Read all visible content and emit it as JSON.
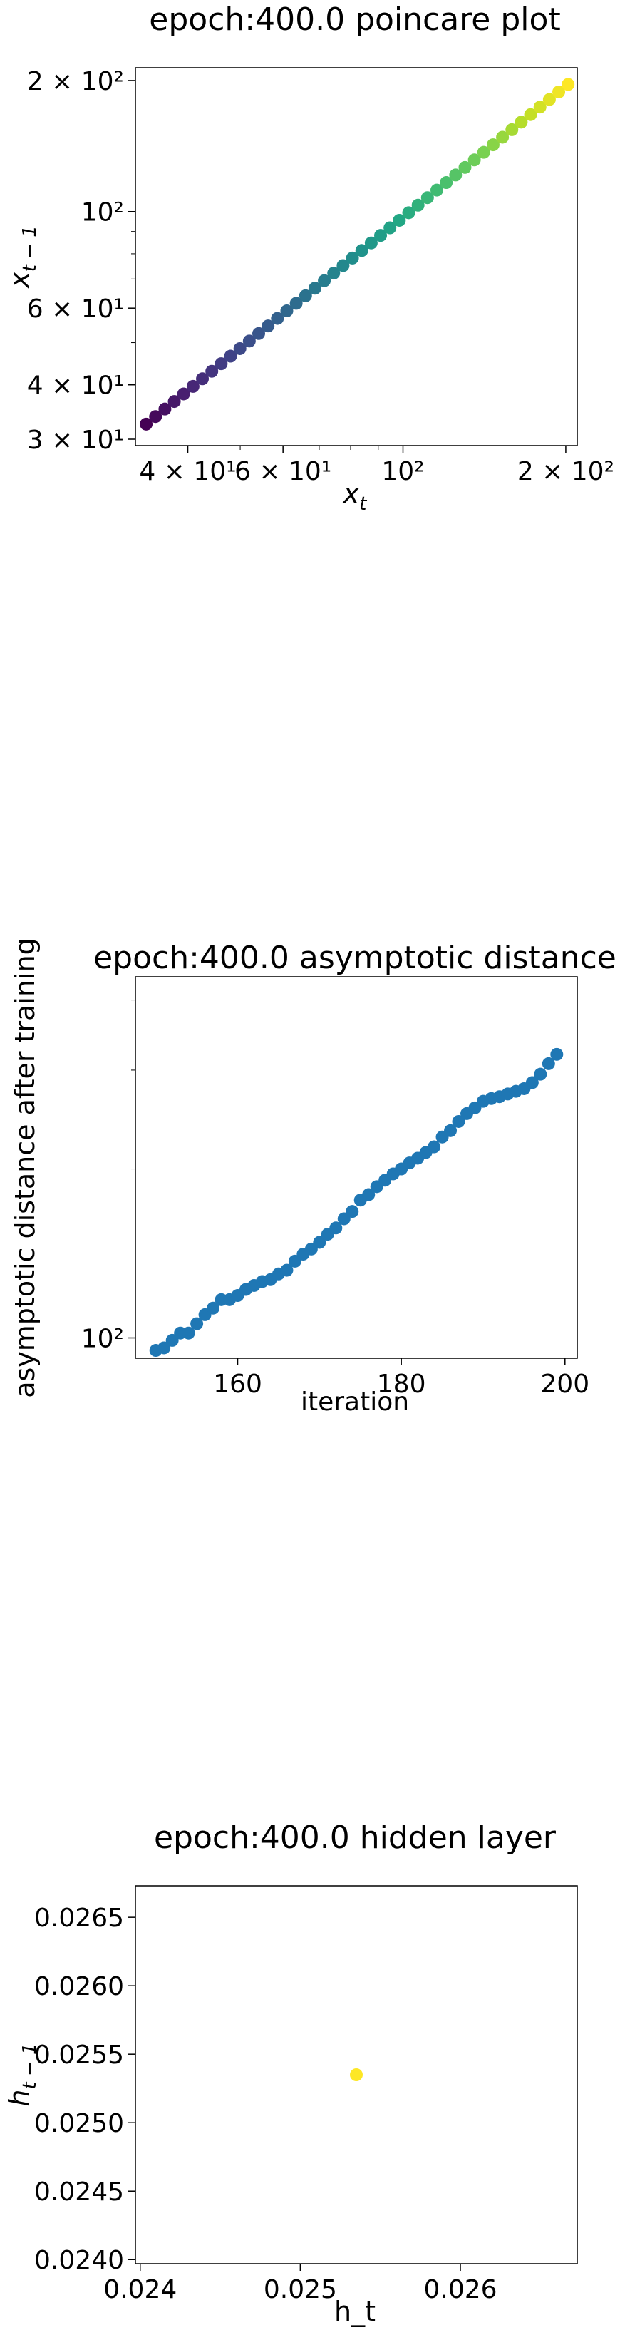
{
  "chart_data": [
    {
      "type": "scatter",
      "title": "epoch:400.0 poincare plot",
      "xlabel_main": "x",
      "xlabel_sub": "t",
      "ylabel_main": "x",
      "ylabel_sub": "t − 1",
      "xscale": "log",
      "yscale": "log",
      "xlim": [
        32,
        210
      ],
      "ylim": [
        29,
        214
      ],
      "x_ticks": [
        {
          "v": 40,
          "label": "4 × 10¹"
        },
        {
          "v": 60,
          "label": "6 × 10¹"
        },
        {
          "v": 100,
          "label": "10²"
        },
        {
          "v": 200,
          "label": "2 × 10²"
        }
      ],
      "y_ticks": [
        {
          "v": 30,
          "label": "3 × 10¹"
        },
        {
          "v": 40,
          "label": "4 × 10¹"
        },
        {
          "v": 60,
          "label": "6 × 10¹"
        },
        {
          "v": 100,
          "label": "10²"
        },
        {
          "v": 200,
          "label": "2 × 10²"
        }
      ],
      "colormap": "viridis",
      "points": 46,
      "x_start": 33.5,
      "x_end": 202,
      "grid": false
    },
    {
      "type": "scatter",
      "title": "epoch:400.0 asymptotic distance",
      "xlabel": "iteration",
      "ylabel": "asymptotic distance after training",
      "yscale": "log",
      "xlim": [
        147.5,
        201.5
      ],
      "ylim": [
        92,
        440
      ],
      "x_ticks": [
        {
          "v": 160,
          "label": "160"
        },
        {
          "v": 180,
          "label": "180"
        },
        {
          "v": 200,
          "label": "200"
        }
      ],
      "y_ticks": [
        {
          "v": 100,
          "label": "10²"
        }
      ],
      "color": "#1f77b4",
      "x": [
        150,
        151,
        152,
        153,
        154,
        155,
        156,
        157,
        158,
        159,
        160,
        161,
        162,
        163,
        164,
        165,
        166,
        167,
        168,
        169,
        170,
        171,
        172,
        173,
        174,
        175,
        176,
        177,
        178,
        179,
        180,
        181,
        182,
        183,
        184,
        185,
        186,
        187,
        188,
        189,
        190,
        191,
        192,
        193,
        194,
        195,
        196,
        197,
        198,
        199
      ],
      "y": [
        95,
        96,
        99,
        102,
        102,
        106,
        110,
        113,
        117,
        117,
        119,
        122,
        124,
        126,
        127,
        130,
        132,
        137,
        141,
        144,
        148,
        153,
        157,
        163,
        168,
        176,
        180,
        186,
        191,
        196,
        200,
        205,
        209,
        214,
        219,
        228,
        234,
        243,
        251,
        257,
        264,
        267,
        269,
        272,
        275,
        278,
        285,
        295,
        308,
        320
      ],
      "grid": false
    },
    {
      "type": "scatter",
      "title": "epoch:400.0 hidden layer",
      "xlabel": "h_t",
      "ylabel_main": "h",
      "ylabel_sub": "t − 1",
      "xlim": [
        0.02397,
        0.02673
      ],
      "ylim": [
        0.02397,
        0.02673
      ],
      "x_ticks": [
        {
          "v": 0.024,
          "label": "0.024"
        },
        {
          "v": 0.025,
          "label": "0.025"
        },
        {
          "v": 0.026,
          "label": "0.026"
        }
      ],
      "y_ticks": [
        {
          "v": 0.024,
          "label": "0.0240"
        },
        {
          "v": 0.0245,
          "label": "0.0245"
        },
        {
          "v": 0.025,
          "label": "0.0250"
        },
        {
          "v": 0.0255,
          "label": "0.0255"
        },
        {
          "v": 0.026,
          "label": "0.0260"
        },
        {
          "v": 0.0265,
          "label": "0.0265"
        }
      ],
      "x": [
        0.02535
      ],
      "y": [
        0.02535
      ],
      "color": "#fde725",
      "grid": false
    }
  ]
}
